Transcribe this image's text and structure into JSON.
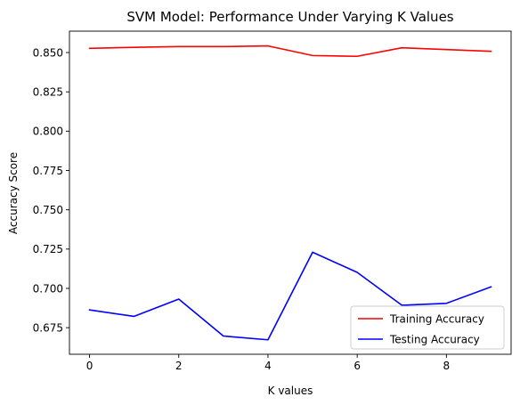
{
  "chart_data": {
    "type": "line",
    "title": "SVM Model: Performance Under Varying K Values",
    "xlabel": "K values",
    "ylabel": "Accuracy Score",
    "x": [
      0,
      1,
      2,
      3,
      4,
      5,
      6,
      7,
      8,
      9
    ],
    "xlim": [
      -0.45,
      9.45
    ],
    "ylim": [
      0.6581,
      0.8636
    ],
    "xticks": [
      0,
      2,
      4,
      6,
      8
    ],
    "yticks": [
      0.675,
      0.7,
      0.725,
      0.75,
      0.775,
      0.8,
      0.825,
      0.85
    ],
    "ytick_labels": [
      "0.675",
      "0.700",
      "0.725",
      "0.750",
      "0.775",
      "0.800",
      "0.825",
      "0.850"
    ],
    "xtick_labels": [
      "0",
      "2",
      "4",
      "6",
      "8"
    ],
    "grid": false,
    "legend_position": "lower-right",
    "series": [
      {
        "name": "Training Accuracy",
        "color": "#ff0000",
        "values": [
          0.8527,
          0.8533,
          0.8538,
          0.8538,
          0.8542,
          0.8481,
          0.8476,
          0.853,
          0.8519,
          0.8508
        ]
      },
      {
        "name": "Testing Accuracy",
        "color": "#0000ff",
        "values": [
          0.6863,
          0.6822,
          0.6932,
          0.6697,
          0.6673,
          0.723,
          0.7102,
          0.6893,
          0.6905,
          0.701
        ]
      }
    ]
  }
}
